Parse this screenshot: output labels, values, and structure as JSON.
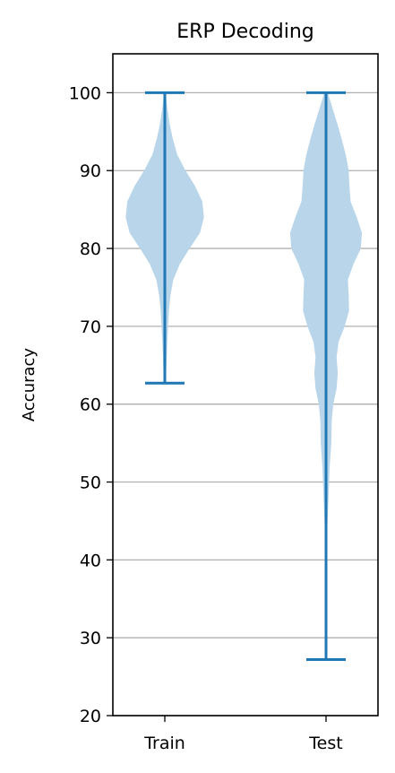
{
  "chart_data": {
    "type": "violin",
    "title": "ERP Decoding",
    "xlabel": "",
    "ylabel": "Accuracy",
    "ylim": [
      20,
      105
    ],
    "yticks": [
      20,
      30,
      40,
      50,
      60,
      70,
      80,
      90,
      100
    ],
    "grid": "y",
    "categories": [
      "Train",
      "Test"
    ],
    "series": [
      {
        "category": "Train",
        "min": 62.7,
        "max": 100,
        "density": [
          [
            62.7,
            0.005
          ],
          [
            65,
            0.03
          ],
          [
            68,
            0.05
          ],
          [
            70,
            0.07
          ],
          [
            72,
            0.09
          ],
          [
            74,
            0.13
          ],
          [
            76,
            0.2
          ],
          [
            78,
            0.36
          ],
          [
            80,
            0.6
          ],
          [
            82,
            0.86
          ],
          [
            84,
            0.96
          ],
          [
            86,
            0.92
          ],
          [
            88,
            0.74
          ],
          [
            90,
            0.5
          ],
          [
            92,
            0.3
          ],
          [
            94,
            0.19
          ],
          [
            96,
            0.11
          ],
          [
            98,
            0.05
          ],
          [
            100,
            0.01
          ]
        ]
      },
      {
        "category": "Test",
        "min": 27.2,
        "max": 100,
        "density": [
          [
            27.2,
            0.0
          ],
          [
            38,
            0.0
          ],
          [
            40,
            0.01
          ],
          [
            44,
            0.02
          ],
          [
            48,
            0.05
          ],
          [
            52,
            0.08
          ],
          [
            55,
            0.12
          ],
          [
            58,
            0.13
          ],
          [
            60,
            0.17
          ],
          [
            62,
            0.25
          ],
          [
            64,
            0.28
          ],
          [
            66,
            0.25
          ],
          [
            68,
            0.3
          ],
          [
            70,
            0.45
          ],
          [
            72,
            0.56
          ],
          [
            74,
            0.55
          ],
          [
            76,
            0.53
          ],
          [
            78,
            0.67
          ],
          [
            80,
            0.85
          ],
          [
            82,
            0.88
          ],
          [
            84,
            0.75
          ],
          [
            86,
            0.6
          ],
          [
            88,
            0.57
          ],
          [
            90,
            0.55
          ],
          [
            92,
            0.48
          ],
          [
            94,
            0.38
          ],
          [
            96,
            0.27
          ],
          [
            98,
            0.15
          ],
          [
            100,
            0.03
          ]
        ]
      }
    ],
    "colors": {
      "body": "#b9d5ea",
      "lines": "#1f77b4",
      "grid": "#b0b0b0"
    }
  }
}
